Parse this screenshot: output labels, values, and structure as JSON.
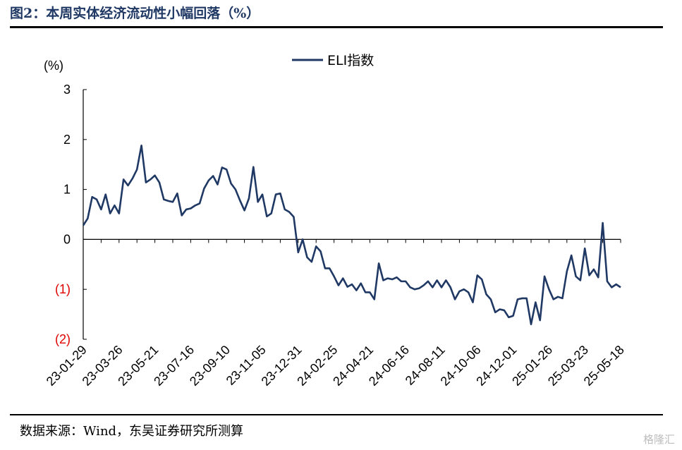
{
  "header": {
    "title": "图2：本周实体经济流动性小幅回落（%）"
  },
  "footer": {
    "source": "数据来源：Wind，东吴证券研究所测算",
    "watermark": "格隆汇"
  },
  "colors": {
    "series": "#1f3864",
    "negative_tick": "#e00000",
    "axis": "#000000"
  },
  "chart_data": {
    "type": "line",
    "title": "",
    "ylabel": "(%)",
    "xlabel": "",
    "ylim": [
      -2,
      3
    ],
    "grid": false,
    "legend": "top-center",
    "yticks": [
      {
        "value": 3,
        "label": "3"
      },
      {
        "value": 2,
        "label": "2"
      },
      {
        "value": 1,
        "label": "1"
      },
      {
        "value": 0,
        "label": "0"
      },
      {
        "value": -1,
        "label": "(1)"
      },
      {
        "value": -2,
        "label": "(2)"
      }
    ],
    "x_tick_labels": [
      "23-01-29",
      "23-03-26",
      "23-05-21",
      "23-07-16",
      "23-09-10",
      "23-11-05",
      "23-12-31",
      "24-02-25",
      "24-04-21",
      "24-06-16",
      "24-08-11",
      "24-10-06",
      "24-12-01",
      "25-01-26",
      "25-03-23",
      "25-05-18"
    ],
    "series": [
      {
        "name": "ELI指数",
        "values": [
          0.28,
          0.42,
          0.85,
          0.8,
          0.6,
          0.9,
          0.52,
          0.68,
          0.52,
          1.2,
          1.08,
          1.22,
          1.4,
          1.88,
          1.14,
          1.2,
          1.28,
          1.14,
          0.8,
          0.77,
          0.75,
          0.92,
          0.48,
          0.6,
          0.62,
          0.68,
          0.72,
          1.02,
          1.18,
          1.27,
          1.1,
          1.44,
          1.4,
          1.12,
          1.0,
          0.78,
          0.58,
          0.82,
          1.45,
          0.75,
          0.9,
          0.46,
          0.52,
          0.9,
          0.92,
          0.6,
          0.55,
          0.45,
          -0.26,
          0.0,
          -0.36,
          -0.45,
          -0.14,
          -0.24,
          -0.58,
          -0.58,
          -0.74,
          -0.92,
          -0.78,
          -0.95,
          -0.9,
          -1.02,
          -0.88,
          -1.06,
          -1.06,
          -1.2,
          -0.48,
          -0.82,
          -0.78,
          -0.8,
          -0.76,
          -0.84,
          -0.84,
          -0.96,
          -1.0,
          -0.98,
          -0.92,
          -0.84,
          -0.96,
          -0.82,
          -0.96,
          -0.82,
          -0.96,
          -1.2,
          -1.04,
          -1.0,
          -1.06,
          -1.26,
          -0.72,
          -0.8,
          -1.1,
          -1.2,
          -1.46,
          -1.4,
          -1.42,
          -1.56,
          -1.53,
          -1.2,
          -1.18,
          -1.18,
          -1.7,
          -1.26,
          -1.62,
          -0.74,
          -1.0,
          -1.2,
          -1.15,
          -1.18,
          -0.64,
          -0.32,
          -0.74,
          -0.82,
          -0.18,
          -0.72,
          -0.6,
          -0.76,
          0.33,
          -0.84,
          -0.96,
          -0.9,
          -0.96
        ]
      }
    ]
  }
}
